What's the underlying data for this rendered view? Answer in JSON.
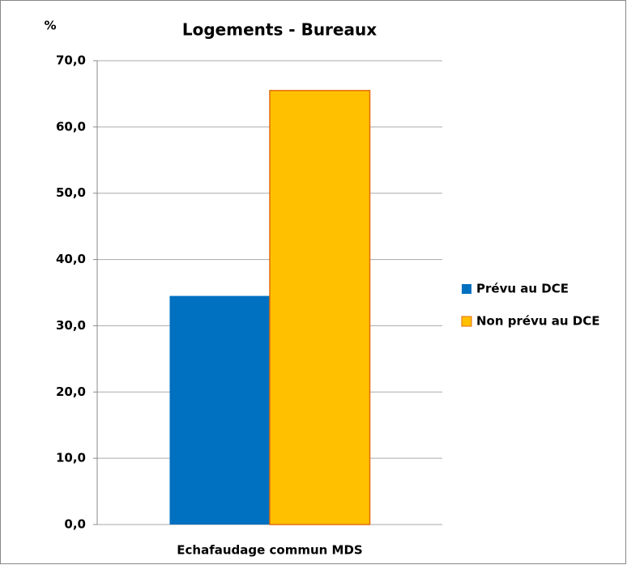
{
  "chart_data": {
    "type": "bar",
    "title": "Logements - Bureaux",
    "y_label": "%",
    "categories": [
      "Echafaudage commun MDS"
    ],
    "series": [
      {
        "name": "Prévu au DCE",
        "color": "#0070c0",
        "values": [
          34.5
        ]
      },
      {
        "name": "Non prévu au DCE",
        "color": "#ffc000",
        "values": [
          65.5
        ]
      }
    ],
    "ylim": [
      0,
      70
    ],
    "yticks": [
      {
        "value": 0,
        "label": "0,0"
      },
      {
        "value": 10,
        "label": "10,0"
      },
      {
        "value": 20,
        "label": "20,0"
      },
      {
        "value": 30,
        "label": "30,0"
      },
      {
        "value": 40,
        "label": "40,0"
      },
      {
        "value": 50,
        "label": "50,0"
      },
      {
        "value": 60,
        "label": "60,0"
      },
      {
        "value": 70,
        "label": "70,0"
      }
    ],
    "grid": true,
    "legend": "right"
  }
}
